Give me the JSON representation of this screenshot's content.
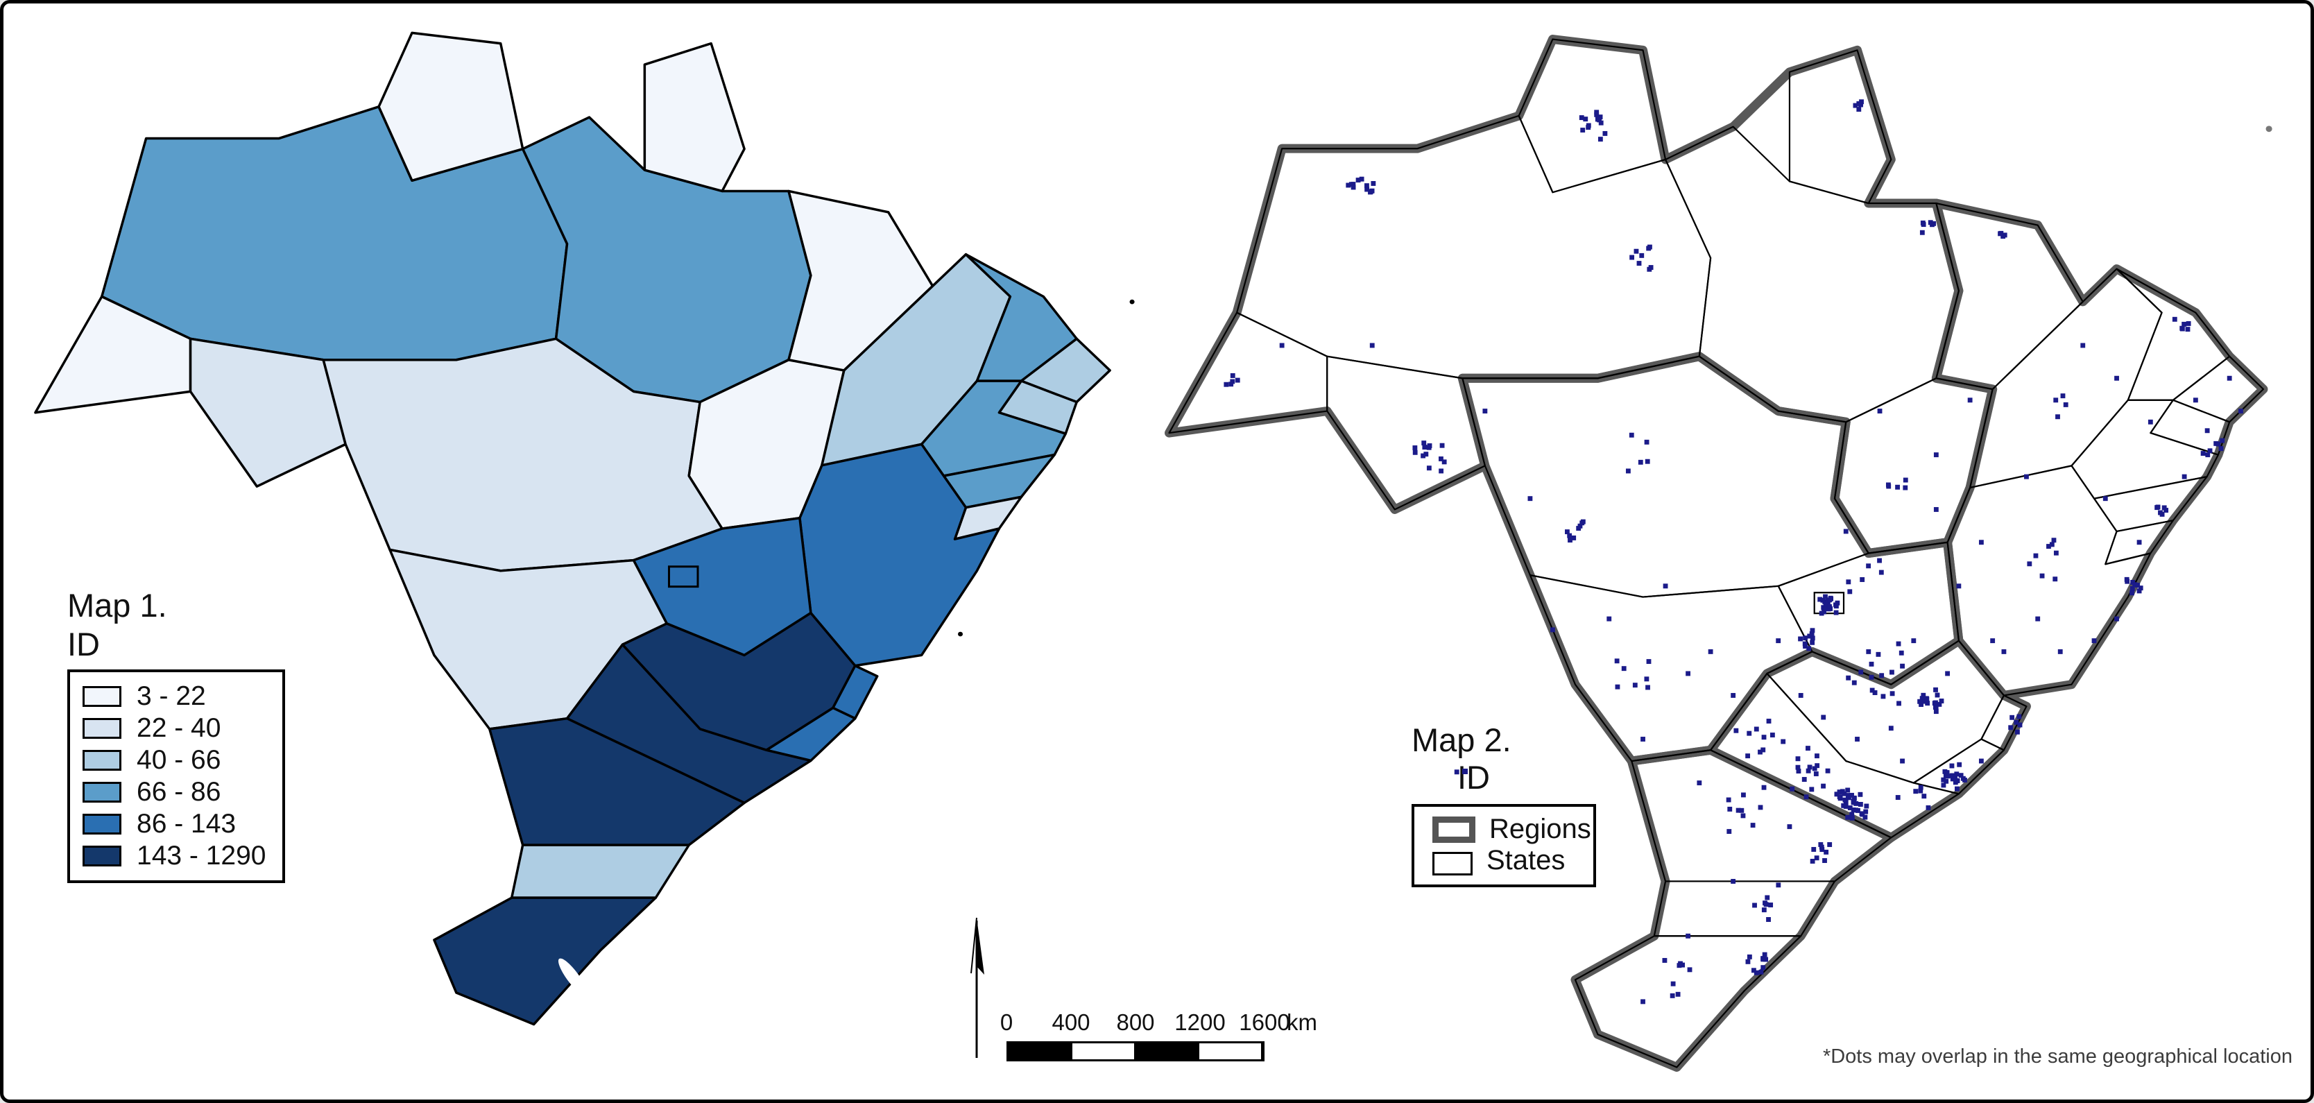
{
  "map1": {
    "title": "Map 1.",
    "subtitle": "ID",
    "legend": [
      {
        "label": "3 - 22",
        "color": "#f2f6fc"
      },
      {
        "label": "22 - 40",
        "color": "#d8e4f1"
      },
      {
        "label": "40 - 66",
        "color": "#aecde3"
      },
      {
        "label": "66 - 86",
        "color": "#5b9dca"
      },
      {
        "label": "86 - 143",
        "color": "#2a6fb2"
      },
      {
        "label": "143 - 1290",
        "color": "#14386b"
      }
    ],
    "state_classes": {
      "RR": 0,
      "AP": 0,
      "MA": 0,
      "TO": 0,
      "AC": 0,
      "RO": 1,
      "MT": 1,
      "MS": 1,
      "SE": 1,
      "PI": 2,
      "RN": 2,
      "PB": 2,
      "SC": 2,
      "AM": 3,
      "PA": 3,
      "CE": 3,
      "PE": 3,
      "AL": 3,
      "BA": 4,
      "GO": 4,
      "DF": 4,
      "ES": 4,
      "RJ": 4,
      "MG": 5,
      "SP": 5,
      "PR": 5,
      "RS": 5
    }
  },
  "map2": {
    "title": "Map 2.",
    "subtitle": "ID",
    "legend": [
      {
        "label": "Regions",
        "swatch": "regions"
      },
      {
        "label": "States",
        "swatch": "states"
      }
    ],
    "footnote": "*Dots may overlap in the same geographical location",
    "dot_clusters": [
      [
        40,
        10,
        14,
        1.3
      ],
      [
        19,
        15.5,
        12,
        1.2
      ],
      [
        44,
        22,
        8,
        1.0
      ],
      [
        63,
        8,
        5,
        0.7
      ],
      [
        69,
        19,
        6,
        0.8
      ],
      [
        8,
        33,
        5,
        1.0
      ],
      [
        25,
        40,
        13,
        1.4
      ],
      [
        38,
        47,
        8,
        1.2
      ],
      [
        44,
        40,
        5,
        2.0
      ],
      [
        66,
        43,
        5,
        1.5
      ],
      [
        76,
        20,
        4,
        0.6
      ],
      [
        92,
        28,
        6,
        0.8
      ],
      [
        94.5,
        39,
        8,
        1.2
      ],
      [
        90,
        45,
        6,
        1.0
      ],
      [
        87.5,
        52,
        9,
        0.9
      ],
      [
        80,
        50,
        8,
        2.5
      ],
      [
        82,
        35,
        4,
        1.5
      ],
      [
        60.5,
        53.7,
        22,
        0.9
      ],
      [
        58.5,
        56.8,
        10,
        1.1
      ],
      [
        63,
        51,
        6,
        2.0
      ],
      [
        69.5,
        62.5,
        18,
        1.2
      ],
      [
        65,
        60,
        16,
        3.5
      ],
      [
        77,
        64.5,
        6,
        0.8
      ],
      [
        71.5,
        69.5,
        26,
        1.1
      ],
      [
        68,
        71,
        6,
        1.5
      ],
      [
        62.5,
        72,
        34,
        1.3
      ],
      [
        59,
        69,
        16,
        2.2
      ],
      [
        55,
        66,
        10,
        2.5
      ],
      [
        43,
        60,
        7,
        2.0
      ],
      [
        60,
        76.5,
        9,
        1.0
      ],
      [
        53,
        72.5,
        10,
        2.2
      ],
      [
        55,
        81,
        8,
        1.8
      ],
      [
        54,
        86.5,
        10,
        1.0
      ],
      [
        47,
        88,
        8,
        2.2
      ]
    ],
    "dot_singles": [
      [
        83,
        30
      ],
      [
        86,
        33
      ],
      [
        96,
        33
      ],
      [
        97,
        36
      ],
      [
        92,
        42
      ],
      [
        88,
        48
      ],
      [
        84,
        57
      ],
      [
        75,
        57
      ],
      [
        72,
        52
      ],
      [
        70,
        45
      ],
      [
        58,
        62
      ],
      [
        50,
        58
      ],
      [
        46,
        52
      ],
      [
        34,
        44
      ],
      [
        30,
        36
      ],
      [
        12,
        30
      ],
      [
        73,
        35
      ],
      [
        78,
        42
      ],
      [
        66,
        65
      ],
      [
        63,
        66
      ],
      [
        74,
        68
      ],
      [
        57,
        74
      ],
      [
        49,
        70
      ],
      [
        44,
        66
      ],
      [
        52,
        79
      ],
      [
        48,
        84
      ],
      [
        44,
        90
      ],
      [
        20,
        30
      ],
      [
        36,
        56
      ],
      [
        68,
        57
      ],
      [
        71,
        60
      ],
      [
        64,
        58
      ],
      [
        60,
        64
      ],
      [
        67,
        68
      ],
      [
        27.5,
        69
      ],
      [
        89,
        37
      ],
      [
        93,
        35
      ],
      [
        85,
        44
      ],
      [
        79,
        55
      ],
      [
        76,
        58
      ],
      [
        62,
        47
      ],
      [
        56,
        57
      ],
      [
        52,
        62
      ],
      [
        41,
        55
      ],
      [
        48,
        60
      ],
      [
        65,
        36
      ],
      [
        70,
        40
      ],
      [
        74,
        48
      ],
      [
        81,
        58
      ],
      [
        86,
        55
      ]
    ]
  },
  "scale_bar": {
    "ticks": [
      "0",
      "400",
      "800",
      "1200",
      "1600"
    ],
    "unit": "km"
  },
  "palette": {
    "dot": "#1b1b8a",
    "region_border": "#595959",
    "state_border": "#000000",
    "background": "#ffffff"
  }
}
